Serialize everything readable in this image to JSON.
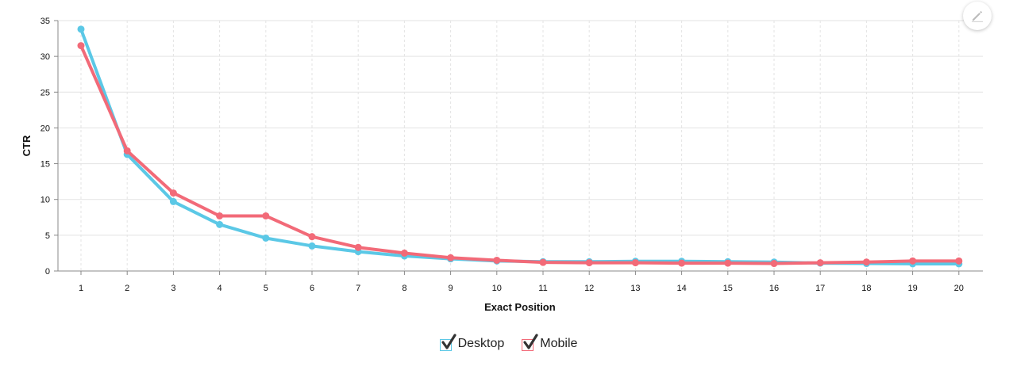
{
  "colors": {
    "desktop": "#5bc8e6",
    "mobile": "#f26a78",
    "grid": "#e3e3e3",
    "axis": "#888888"
  },
  "legend": {
    "items": [
      {
        "label": "Desktop",
        "checked": true,
        "color": "#5bc8e6"
      },
      {
        "label": "Mobile",
        "checked": true,
        "color": "#f26a78"
      }
    ]
  },
  "toolbar": {
    "edit_icon": "pencil-icon"
  },
  "chart_data": {
    "type": "line",
    "x": [
      1,
      2,
      3,
      4,
      5,
      6,
      7,
      8,
      9,
      10,
      11,
      12,
      13,
      14,
      15,
      16,
      17,
      18,
      19,
      20
    ],
    "series": [
      {
        "name": "Desktop",
        "values": [
          33.8,
          16.3,
          9.7,
          6.5,
          4.6,
          3.5,
          2.7,
          2.1,
          1.7,
          1.4,
          1.3,
          1.3,
          1.35,
          1.35,
          1.3,
          1.25,
          1.1,
          1.05,
          1.0,
          1.0
        ]
      },
      {
        "name": "Mobile",
        "values": [
          31.5,
          16.8,
          10.9,
          7.7,
          7.7,
          4.8,
          3.3,
          2.5,
          1.85,
          1.5,
          1.2,
          1.15,
          1.15,
          1.1,
          1.1,
          1.05,
          1.15,
          1.25,
          1.4,
          1.4
        ]
      }
    ],
    "xlabel": "Exact Position",
    "ylabel": "CTR",
    "yticks": [
      0,
      5,
      10,
      15,
      20,
      25,
      30,
      35
    ],
    "ylim": [
      0,
      35
    ],
    "grid": true,
    "legend_position": "bottom-center"
  }
}
